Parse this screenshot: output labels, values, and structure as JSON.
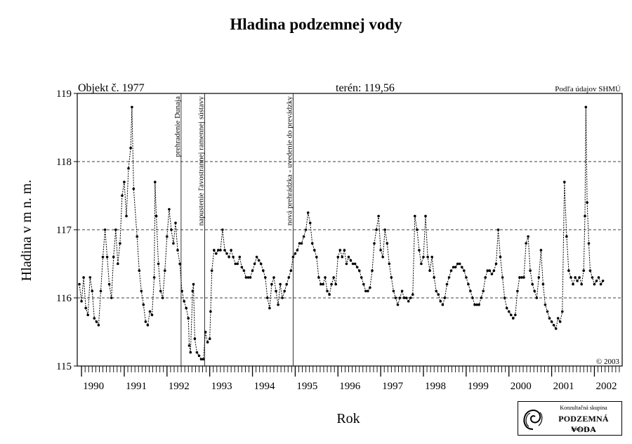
{
  "title": "Hladina podzemnej vody",
  "header": {
    "object": "Objekt č. 1977",
    "terrain": "terén: 119,56",
    "source": "Podľa údajov SHMÚ"
  },
  "copyright": "© 2003",
  "logo": {
    "line1": "Konzultačná skupina",
    "line2": "PODZEMNÁ VODA",
    "line3": "spol. s r. o."
  },
  "chart_data": {
    "type": "scatter",
    "title": "Hladina podzemnej vody",
    "xlabel": "Rok",
    "ylabel": "Hladina v m n. m.",
    "xlim": [
      1989.9,
      2002.65
    ],
    "ylim": [
      115,
      119
    ],
    "yticks": [
      115,
      116,
      117,
      118,
      119
    ],
    "xticks": [
      "1990",
      "1991",
      "1992",
      "1993",
      "1994",
      "1995",
      "1996",
      "1997",
      "1998",
      "1999",
      "2000",
      "2001",
      "2002"
    ],
    "grid": "horizontal-dashed",
    "events": [
      {
        "x": 1992.33,
        "label": "prehradenie Dunaja"
      },
      {
        "x": 1992.88,
        "label": "napustenie ľavostrannej ramennej sústavy"
      },
      {
        "x": 1994.95,
        "label": "nová prehrádzka - uvedenie do prevádzky"
      }
    ],
    "series": [
      {
        "marker": "dot",
        "line": "dashed",
        "points": [
          [
            1989.95,
            116.2
          ],
          [
            1990.0,
            115.95
          ],
          [
            1990.05,
            116.3
          ],
          [
            1990.1,
            115.85
          ],
          [
            1990.15,
            115.75
          ],
          [
            1990.2,
            116.3
          ],
          [
            1990.25,
            116.1
          ],
          [
            1990.3,
            115.7
          ],
          [
            1990.35,
            115.65
          ],
          [
            1990.4,
            115.6
          ],
          [
            1990.45,
            116.1
          ],
          [
            1990.5,
            116.6
          ],
          [
            1990.55,
            117.0
          ],
          [
            1990.6,
            116.6
          ],
          [
            1990.65,
            116.2
          ],
          [
            1990.7,
            116.0
          ],
          [
            1990.75,
            116.6
          ],
          [
            1990.8,
            117.0
          ],
          [
            1990.85,
            116.5
          ],
          [
            1990.9,
            116.8
          ],
          [
            1990.95,
            117.5
          ],
          [
            1991.0,
            117.7
          ],
          [
            1991.05,
            117.2
          ],
          [
            1991.1,
            117.9
          ],
          [
            1991.15,
            118.2
          ],
          [
            1991.18,
            118.8
          ],
          [
            1991.22,
            117.6
          ],
          [
            1991.3,
            116.9
          ],
          [
            1991.35,
            116.4
          ],
          [
            1991.4,
            116.1
          ],
          [
            1991.45,
            115.9
          ],
          [
            1991.5,
            115.65
          ],
          [
            1991.55,
            115.6
          ],
          [
            1991.6,
            115.8
          ],
          [
            1991.65,
            115.75
          ],
          [
            1991.7,
            116.3
          ],
          [
            1991.72,
            117.7
          ],
          [
            1991.75,
            117.2
          ],
          [
            1991.8,
            116.5
          ],
          [
            1991.85,
            116.1
          ],
          [
            1991.9,
            116.0
          ],
          [
            1991.95,
            116.4
          ],
          [
            1992.0,
            116.9
          ],
          [
            1992.05,
            117.3
          ],
          [
            1992.1,
            117.0
          ],
          [
            1992.15,
            116.8
          ],
          [
            1992.2,
            117.1
          ],
          [
            1992.25,
            116.7
          ],
          [
            1992.3,
            116.5
          ],
          [
            1992.35,
            116.1
          ],
          [
            1992.4,
            115.95
          ],
          [
            1992.45,
            115.85
          ],
          [
            1992.5,
            115.7
          ],
          [
            1992.52,
            115.3
          ],
          [
            1992.55,
            115.2
          ],
          [
            1992.6,
            116.1
          ],
          [
            1992.62,
            116.2
          ],
          [
            1992.65,
            115.4
          ],
          [
            1992.7,
            115.2
          ],
          [
            1992.75,
            115.15
          ],
          [
            1992.8,
            115.1
          ],
          [
            1992.85,
            115.1
          ],
          [
            1992.9,
            115.5
          ],
          [
            1992.95,
            115.35
          ],
          [
            1993.0,
            115.4
          ],
          [
            1993.02,
            115.8
          ],
          [
            1993.05,
            116.4
          ],
          [
            1993.1,
            116.7
          ],
          [
            1993.15,
            116.65
          ],
          [
            1993.2,
            116.7
          ],
          [
            1993.25,
            116.7
          ],
          [
            1993.3,
            117.0
          ],
          [
            1993.35,
            116.7
          ],
          [
            1993.4,
            116.65
          ],
          [
            1993.45,
            116.6
          ],
          [
            1993.5,
            116.7
          ],
          [
            1993.55,
            116.6
          ],
          [
            1993.6,
            116.5
          ],
          [
            1993.65,
            116.5
          ],
          [
            1993.7,
            116.6
          ],
          [
            1993.75,
            116.45
          ],
          [
            1993.8,
            116.4
          ],
          [
            1993.85,
            116.3
          ],
          [
            1993.9,
            116.3
          ],
          [
            1993.95,
            116.3
          ],
          [
            1994.0,
            116.4
          ],
          [
            1994.05,
            116.5
          ],
          [
            1994.1,
            116.6
          ],
          [
            1994.15,
            116.55
          ],
          [
            1994.2,
            116.5
          ],
          [
            1994.25,
            116.4
          ],
          [
            1994.3,
            116.3
          ],
          [
            1994.35,
            116.0
          ],
          [
            1994.4,
            115.85
          ],
          [
            1994.45,
            116.2
          ],
          [
            1994.5,
            116.3
          ],
          [
            1994.55,
            116.1
          ],
          [
            1994.6,
            115.9
          ],
          [
            1994.65,
            116.2
          ],
          [
            1994.7,
            116.0
          ],
          [
            1994.75,
            116.1
          ],
          [
            1994.8,
            116.2
          ],
          [
            1994.85,
            116.3
          ],
          [
            1994.9,
            116.4
          ],
          [
            1994.95,
            116.6
          ],
          [
            1995.0,
            116.65
          ],
          [
            1995.05,
            116.7
          ],
          [
            1995.1,
            116.8
          ],
          [
            1995.15,
            116.8
          ],
          [
            1995.2,
            116.9
          ],
          [
            1995.25,
            117.0
          ],
          [
            1995.3,
            117.25
          ],
          [
            1995.35,
            117.1
          ],
          [
            1995.4,
            116.8
          ],
          [
            1995.45,
            116.7
          ],
          [
            1995.5,
            116.6
          ],
          [
            1995.55,
            116.3
          ],
          [
            1995.6,
            116.2
          ],
          [
            1995.65,
            116.2
          ],
          [
            1995.7,
            116.3
          ],
          [
            1995.75,
            116.1
          ],
          [
            1995.8,
            116.05
          ],
          [
            1995.85,
            116.2
          ],
          [
            1995.9,
            116.3
          ],
          [
            1995.95,
            116.2
          ],
          [
            1996.0,
            116.6
          ],
          [
            1996.05,
            116.7
          ],
          [
            1996.1,
            116.6
          ],
          [
            1996.15,
            116.7
          ],
          [
            1996.2,
            116.5
          ],
          [
            1996.25,
            116.6
          ],
          [
            1996.3,
            116.55
          ],
          [
            1996.35,
            116.5
          ],
          [
            1996.4,
            116.5
          ],
          [
            1996.45,
            116.45
          ],
          [
            1996.5,
            116.4
          ],
          [
            1996.55,
            116.3
          ],
          [
            1996.6,
            116.2
          ],
          [
            1996.65,
            116.1
          ],
          [
            1996.7,
            116.1
          ],
          [
            1996.75,
            116.15
          ],
          [
            1996.8,
            116.4
          ],
          [
            1996.85,
            116.8
          ],
          [
            1996.9,
            117.0
          ],
          [
            1996.95,
            117.2
          ],
          [
            1997.0,
            116.7
          ],
          [
            1997.05,
            116.6
          ],
          [
            1997.1,
            117.0
          ],
          [
            1997.15,
            116.8
          ],
          [
            1997.2,
            116.5
          ],
          [
            1997.25,
            116.3
          ],
          [
            1997.3,
            116.1
          ],
          [
            1997.35,
            116.0
          ],
          [
            1997.4,
            115.9
          ],
          [
            1997.45,
            116.0
          ],
          [
            1997.5,
            116.1
          ],
          [
            1997.55,
            116.0
          ],
          [
            1997.6,
            116.0
          ],
          [
            1997.65,
            115.95
          ],
          [
            1997.7,
            116.0
          ],
          [
            1997.75,
            116.05
          ],
          [
            1997.8,
            117.2
          ],
          [
            1997.85,
            117.0
          ],
          [
            1997.9,
            116.7
          ],
          [
            1997.95,
            116.5
          ],
          [
            1998.0,
            116.6
          ],
          [
            1998.05,
            117.2
          ],
          [
            1998.1,
            116.6
          ],
          [
            1998.15,
            116.4
          ],
          [
            1998.2,
            116.6
          ],
          [
            1998.25,
            116.3
          ],
          [
            1998.3,
            116.1
          ],
          [
            1998.35,
            116.05
          ],
          [
            1998.4,
            115.95
          ],
          [
            1998.45,
            115.9
          ],
          [
            1998.5,
            116.0
          ],
          [
            1998.55,
            116.2
          ],
          [
            1998.6,
            116.3
          ],
          [
            1998.65,
            116.4
          ],
          [
            1998.7,
            116.45
          ],
          [
            1998.75,
            116.45
          ],
          [
            1998.8,
            116.5
          ],
          [
            1998.85,
            116.5
          ],
          [
            1998.9,
            116.45
          ],
          [
            1998.95,
            116.4
          ],
          [
            1999.0,
            116.3
          ],
          [
            1999.05,
            116.2
          ],
          [
            1999.1,
            116.1
          ],
          [
            1999.15,
            116.0
          ],
          [
            1999.2,
            115.9
          ],
          [
            1999.25,
            115.9
          ],
          [
            1999.3,
            115.9
          ],
          [
            1999.35,
            116.0
          ],
          [
            1999.4,
            116.1
          ],
          [
            1999.45,
            116.3
          ],
          [
            1999.5,
            116.4
          ],
          [
            1999.55,
            116.4
          ],
          [
            1999.6,
            116.35
          ],
          [
            1999.65,
            116.4
          ],
          [
            1999.7,
            116.5
          ],
          [
            1999.75,
            117.0
          ],
          [
            1999.8,
            116.6
          ],
          [
            1999.85,
            116.3
          ],
          [
            1999.9,
            116.0
          ],
          [
            1999.95,
            115.85
          ],
          [
            2000.0,
            115.8
          ],
          [
            2000.05,
            115.75
          ],
          [
            2000.1,
            115.7
          ],
          [
            2000.15,
            115.75
          ],
          [
            2000.2,
            116.1
          ],
          [
            2000.25,
            116.3
          ],
          [
            2000.3,
            116.3
          ],
          [
            2000.35,
            116.3
          ],
          [
            2000.4,
            116.8
          ],
          [
            2000.45,
            116.9
          ],
          [
            2000.5,
            116.4
          ],
          [
            2000.55,
            116.2
          ],
          [
            2000.6,
            116.1
          ],
          [
            2000.65,
            116.0
          ],
          [
            2000.7,
            116.3
          ],
          [
            2000.75,
            116.7
          ],
          [
            2000.8,
            116.2
          ],
          [
            2000.85,
            115.9
          ],
          [
            2000.9,
            115.8
          ],
          [
            2000.95,
            115.7
          ],
          [
            2001.0,
            115.65
          ],
          [
            2001.05,
            115.6
          ],
          [
            2001.1,
            115.55
          ],
          [
            2001.15,
            115.7
          ],
          [
            2001.2,
            115.65
          ],
          [
            2001.25,
            115.8
          ],
          [
            2001.3,
            117.7
          ],
          [
            2001.35,
            116.9
          ],
          [
            2001.4,
            116.4
          ],
          [
            2001.45,
            116.3
          ],
          [
            2001.5,
            116.2
          ],
          [
            2001.55,
            116.3
          ],
          [
            2001.6,
            116.25
          ],
          [
            2001.65,
            116.3
          ],
          [
            2001.7,
            116.2
          ],
          [
            2001.75,
            116.4
          ],
          [
            2001.78,
            117.2
          ],
          [
            2001.8,
            118.8
          ],
          [
            2001.83,
            117.4
          ],
          [
            2001.87,
            116.8
          ],
          [
            2001.9,
            116.4
          ],
          [
            2001.95,
            116.3
          ],
          [
            2002.0,
            116.2
          ],
          [
            2002.05,
            116.25
          ],
          [
            2002.1,
            116.3
          ],
          [
            2002.15,
            116.2
          ],
          [
            2002.2,
            116.25
          ]
        ]
      }
    ]
  }
}
